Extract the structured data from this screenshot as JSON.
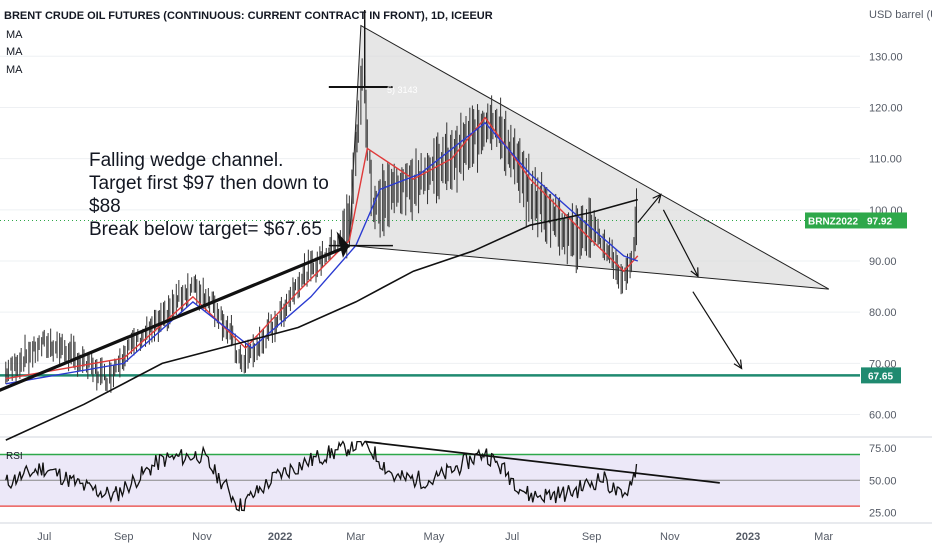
{
  "header": {
    "title": "BRENT CRUDE OIL FUTURES (CONTINUOUS: CURRENT CONTRACT IN FRONT), 1D, ICEEUR",
    "indicators": [
      "MA",
      "MA",
      "MA"
    ]
  },
  "annotation": {
    "lines": [
      "Falling wedge channel.",
      "Target first $97 then down to",
      "$88",
      "Break below target= $67.65"
    ]
  },
  "price_marker": {
    "symbol": "BRNZ2022",
    "value": "97.92",
    "color": "#2ea84a"
  },
  "target_marker": {
    "value": "67.65",
    "color": "#1f8a70"
  },
  "peak_label": "5) 3143",
  "colors": {
    "ma_fast": "#e03a3a",
    "ma_mid": "#2b3bd1",
    "ma_slow": "#111111",
    "rsi": "#111111",
    "rsi_upper": "#2ea84a",
    "rsi_lower": "#e8413c",
    "target_line": "#1f8a70"
  },
  "chart_data": [
    {
      "type": "line",
      "title": "BRENT CRUDE OIL FUTURES (CONTINUOUS: CURRENT CONTRACT IN FRONT), 1D, ICEEUR",
      "ylabel": "USD barrel (US)",
      "ylim": [
        56,
        141
      ],
      "y_ticks": [
        "60.00",
        "70.00",
        "80.00",
        "90.00",
        "100.00",
        "110.00",
        "120.00",
        "130.00"
      ],
      "x_ticks": [
        "Jul",
        "Sep",
        "Nov",
        "2022",
        "Mar",
        "May",
        "Jul",
        "Sep",
        "Nov",
        "2023",
        "Mar"
      ],
      "series": [
        {
          "name": "BRNZ2022",
          "x": [
            "2021-06-01",
            "2021-06-15",
            "2021-07-01",
            "2021-07-15",
            "2021-08-01",
            "2021-08-20",
            "2021-09-01",
            "2021-09-15",
            "2021-10-01",
            "2021-10-15",
            "2021-10-25",
            "2021-11-10",
            "2021-11-25",
            "2021-12-01",
            "2021-12-15",
            "2022-01-01",
            "2022-01-15",
            "2022-02-01",
            "2022-02-15",
            "2022-02-24",
            "2022-03-01",
            "2022-03-07",
            "2022-03-15",
            "2022-04-01",
            "2022-04-15",
            "2022-05-01",
            "2022-05-15",
            "2022-06-01",
            "2022-06-15",
            "2022-07-01",
            "2022-07-15",
            "2022-08-01",
            "2022-08-15",
            "2022-09-01",
            "2022-09-15",
            "2022-09-26",
            "2022-10-03",
            "2022-10-07"
          ],
          "values": [
            68,
            71,
            74,
            73,
            70,
            67,
            72,
            75,
            78,
            83,
            85,
            82,
            75,
            70,
            73,
            79,
            86,
            90,
            94,
            97,
            110,
            127,
            100,
            104,
            105,
            108,
            110,
            114,
            118,
            111,
            103,
            99,
            95,
            96,
            92,
            86,
            91,
            97.92
          ]
        },
        {
          "name": "MA",
          "x": [
            "2021-06-01",
            "2021-09-01",
            "2021-10-25",
            "2021-12-05",
            "2022-01-15",
            "2022-02-24",
            "2022-03-10",
            "2022-04-15",
            "2022-05-15",
            "2022-06-10",
            "2022-07-15",
            "2022-08-20",
            "2022-09-26",
            "2022-10-07"
          ],
          "values": [
            67,
            71,
            83,
            73,
            84,
            94,
            112,
            106,
            110,
            118,
            106,
            97,
            88,
            91
          ]
        },
        {
          "name": "MA",
          "x": [
            "2021-06-01",
            "2021-09-01",
            "2021-10-25",
            "2021-12-10",
            "2022-01-25",
            "2022-03-01",
            "2022-03-20",
            "2022-04-20",
            "2022-06-10",
            "2022-07-15",
            "2022-08-20",
            "2022-09-26",
            "2022-10-07"
          ],
          "values": [
            66,
            70,
            82,
            73,
            83,
            93,
            104,
            107,
            117,
            107,
            99,
            91,
            90
          ]
        },
        {
          "name": "MA",
          "x": [
            "2021-06-01",
            "2021-08-01",
            "2021-10-01",
            "2021-12-01",
            "2022-01-15",
            "2022-03-01",
            "2022-04-15",
            "2022-06-01",
            "2022-07-15",
            "2022-09-01",
            "2022-10-07"
          ],
          "values": [
            55,
            62,
            70,
            74,
            77,
            82,
            88,
            92,
            97,
            99.5,
            102
          ]
        }
      ]
    },
    {
      "type": "line",
      "title": "RSI",
      "ylim": [
        20,
        82
      ],
      "y_ticks": [
        "25.00",
        "50.00",
        "75.00"
      ],
      "bands": [
        30,
        70
      ],
      "series": [
        {
          "name": "RSI",
          "x": [
            "2021-06-01",
            "2021-07-01",
            "2021-08-01",
            "2021-08-25",
            "2021-10-01",
            "2021-11-01",
            "2021-12-01",
            "2022-01-01",
            "2022-02-01",
            "2022-03-08",
            "2022-04-01",
            "2022-05-01",
            "2022-06-10",
            "2022-07-15",
            "2022-08-15",
            "2022-09-10",
            "2022-09-26",
            "2022-10-07"
          ],
          "values": [
            48,
            60,
            45,
            38,
            66,
            70,
            30,
            55,
            68,
            80,
            52,
            50,
            72,
            38,
            40,
            52,
            35,
            62
          ]
        }
      ]
    }
  ]
}
